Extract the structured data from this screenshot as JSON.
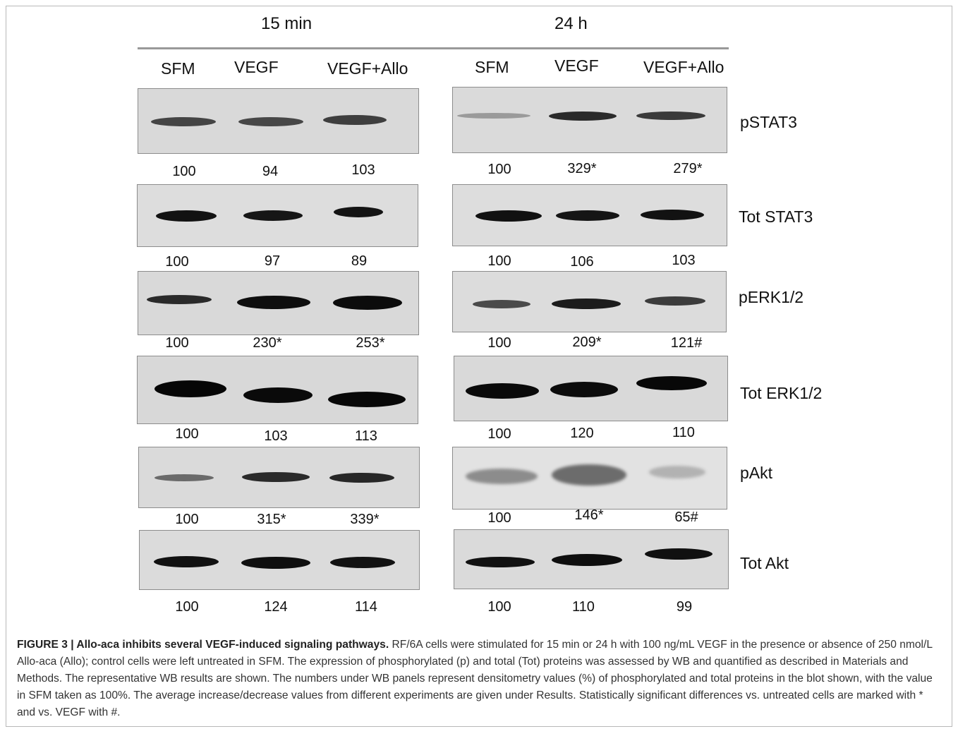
{
  "figure": {
    "timepoints": [
      "15 min",
      "24 h"
    ],
    "lanes": [
      "SFM",
      "VEGF",
      "VEGF+Allo"
    ],
    "rows": [
      {
        "label": "pSTAT3",
        "left_values": [
          "100",
          "94",
          "103"
        ],
        "right_values": [
          "100",
          "329*",
          "279*"
        ]
      },
      {
        "label": "Tot STAT3",
        "left_values": [
          "100",
          "97",
          "89"
        ],
        "right_values": [
          "100",
          "106",
          "103"
        ]
      },
      {
        "label": "pERK1/2",
        "left_values": [
          "100",
          "230*",
          "253*"
        ],
        "right_values": [
          "100",
          "209*",
          "121#"
        ]
      },
      {
        "label": "Tot ERK1/2",
        "left_values": [
          "100",
          "103",
          "113"
        ],
        "right_values": [
          "100",
          "120",
          "110"
        ]
      },
      {
        "label": "pAkt",
        "left_values": [
          "100",
          "315*",
          "339*"
        ],
        "right_values": [
          "100",
          "146*",
          "65#"
        ]
      },
      {
        "label": "Tot Akt",
        "left_values": [
          "100",
          "124",
          "114"
        ],
        "right_values": [
          "100",
          "110",
          "99"
        ]
      }
    ]
  },
  "caption": {
    "label": "FIGURE 3 | Allo-aca inhibits several VEGF-induced signaling pathways.",
    "text": " RF/6A cells were stimulated for 15 min or 24 h with 100 ng/mL VEGF in the presence or absence of 250 nmol/L Allo-aca (Allo); control cells were left untreated in SFM. The expression of phosphorylated (p) and total (Tot) proteins was assessed by WB and quantified as described in Materials and Methods. The representative WB results are shown. The numbers under WB panels represent densitometry values (%) of phosphorylated and total proteins in the blot shown, with the value in SFM taken as 100%. The average increase/decrease values from different experiments are given under Results. Statistically significant differences vs. untreated cells are marked with * and vs. VEGF with #."
  }
}
